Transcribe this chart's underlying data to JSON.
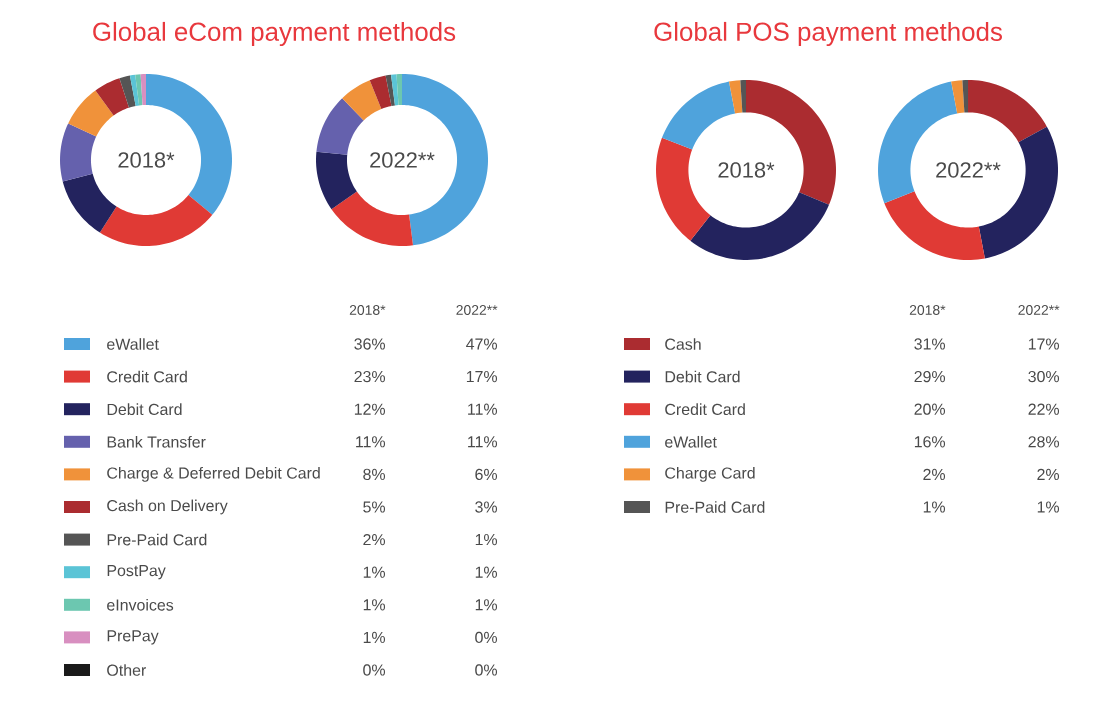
{
  "chart_data": [
    {
      "type": "donut",
      "title": "Global eCom payment methods",
      "legend": "bottom",
      "categories": [
        "eWallet",
        "Credit Card",
        "Debit Card",
        "Bank Transfer",
        "Charge & Deferred Debit Card",
        "Cash on Delivery",
        "Pre-Paid Card",
        "PostPay",
        "eInvoices",
        "PrePay",
        "Other"
      ],
      "colors": [
        "#4fa3dc",
        "#e03a35",
        "#23235e",
        "#6561ad",
        "#f0923a",
        "#ab2c30",
        "#555555",
        "#5bc4d6",
        "#6cc7b0",
        "#d88fc0",
        "#1a1a1a"
      ],
      "series": [
        {
          "name": "2018*",
          "values": [
            36,
            23,
            12,
            11,
            8,
            5,
            2,
            1,
            1,
            1,
            0
          ],
          "value_labels": [
            "36%",
            "23%",
            "12%",
            "11%",
            "8%",
            "5%",
            "2%",
            "1%",
            "1%",
            "1%",
            "0%"
          ]
        },
        {
          "name": "2022**",
          "values": [
            47,
            17,
            11,
            11,
            6,
            3,
            1,
            1,
            1,
            0,
            0
          ],
          "value_labels": [
            "47%",
            "17%",
            "11%",
            "11%",
            "6%",
            "3%",
            "1%",
            "1%",
            "1%",
            "0%",
            "0%"
          ]
        }
      ]
    },
    {
      "type": "donut",
      "title": "Global POS payment methods",
      "legend": "bottom",
      "categories": [
        "Cash",
        "Debit Card",
        "Credit Card",
        "eWallet",
        "Charge Card",
        "Pre-Paid Card"
      ],
      "colors": [
        "#ab2c30",
        "#23235e",
        "#e03a35",
        "#4fa3dc",
        "#f0923a",
        "#555555"
      ],
      "series": [
        {
          "name": "2018*",
          "values": [
            31,
            29,
            20,
            16,
            2,
            1
          ],
          "value_labels": [
            "31%",
            "29%",
            "20%",
            "16%",
            "2%",
            "1%"
          ]
        },
        {
          "name": "2022**",
          "values": [
            17,
            30,
            22,
            28,
            2,
            1
          ],
          "value_labels": [
            "17%",
            "30%",
            "22%",
            "28%",
            "2%",
            "1%"
          ]
        }
      ]
    }
  ]
}
